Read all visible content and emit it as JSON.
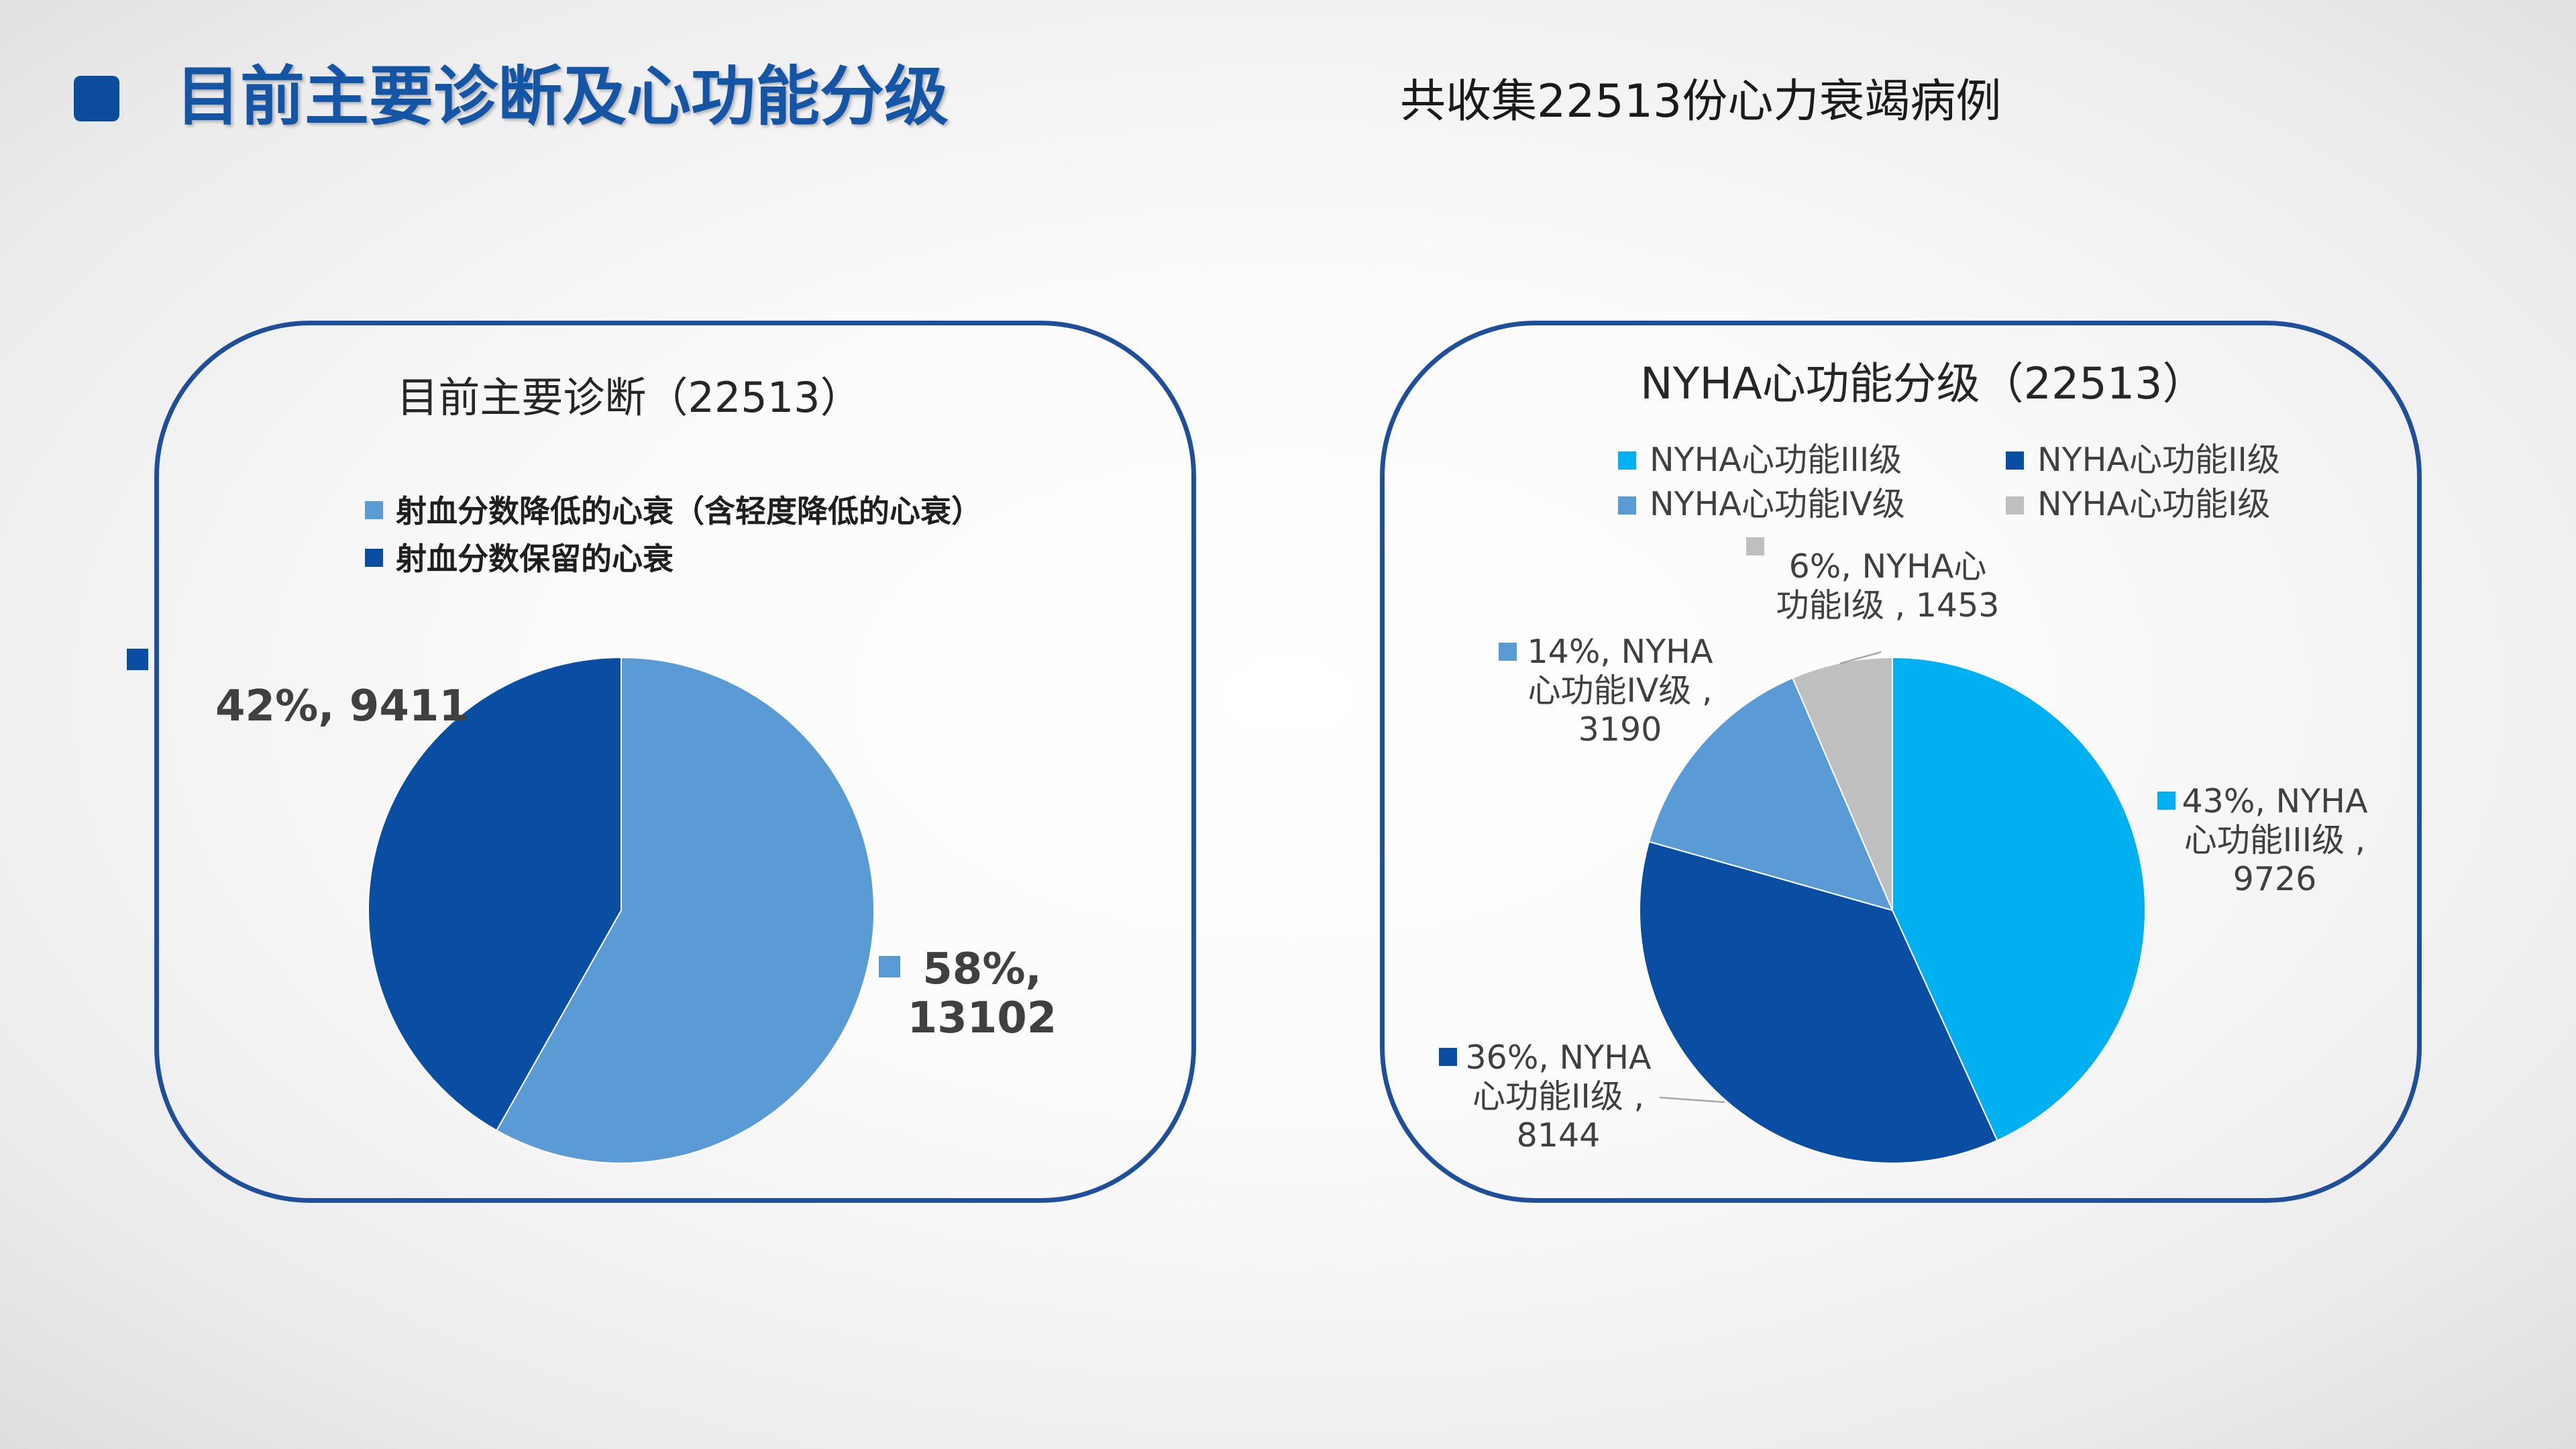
{
  "header": {
    "title": "目前主要诊断及心功能分级",
    "summary": "共收集22513份心力衰竭病例"
  },
  "chart_data": [
    {
      "type": "pie",
      "title": "目前主要诊断（22513）",
      "legend": "top",
      "slices": [
        {
          "name": "射血分数降低的心衰（含轻度降低的心衰）",
          "value": 13102,
          "color": "#5b9bd5",
          "label": "58%,\n13102"
        },
        {
          "name": "射血分数保留的心衰",
          "value": 9411,
          "color": "#0a4ea3",
          "label": "42%, 9411"
        }
      ]
    },
    {
      "type": "pie",
      "title": "NYHA心功能分级（22513）",
      "legend": "top",
      "slices": [
        {
          "name": "NYHA心功能III级",
          "value": 9726,
          "color": "#00b0f0",
          "label": "43%, NYHA\n心功能III级 ,\n9726"
        },
        {
          "name": "NYHA心功能II级",
          "value": 8144,
          "color": "#0a4ea3",
          "label": "36%, NYHA\n心功能II级 ,\n8144"
        },
        {
          "name": "NYHA心功能IV级",
          "value": 3190,
          "color": "#5b9bd5",
          "label": "14%, NYHA\n心功能IV级 ,\n3190"
        },
        {
          "name": "NYHA心功能I级",
          "value": 1453,
          "color": "#bfbfbf",
          "label": "6%, NYHA心\n功能I级 , 1453"
        }
      ]
    }
  ]
}
